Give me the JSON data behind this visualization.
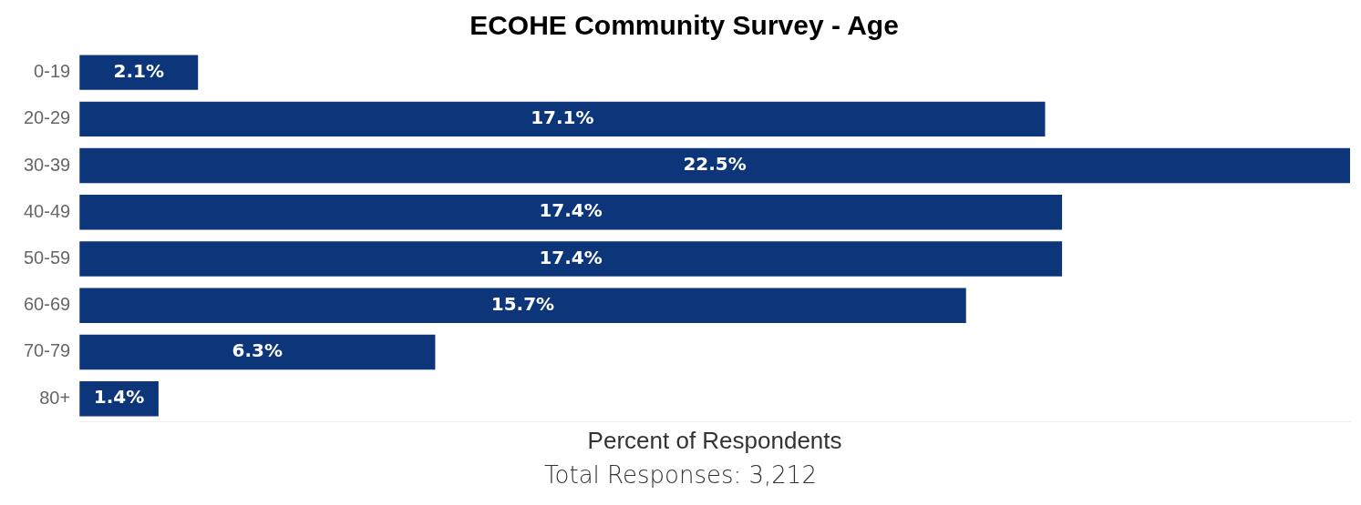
{
  "chart_data": {
    "type": "bar",
    "orientation": "horizontal",
    "title": "ECOHE Community Survey - Age",
    "xlabel": "Percent of Respondents",
    "annotations": [
      "Total Responses: 3,212"
    ],
    "categories": [
      "0-19",
      "20-29",
      "30-39",
      "40-49",
      "50-59",
      "60-69",
      "70-79",
      "80+"
    ],
    "values": [
      2.1,
      17.1,
      22.5,
      17.4,
      17.4,
      15.7,
      6.3,
      1.4
    ],
    "value_labels": [
      "2.1%",
      "17.1%",
      "22.5%",
      "17.4%",
      "17.4%",
      "15.7%",
      "6.3%",
      "1.4%"
    ],
    "color": "#0c357a",
    "xlim": [
      0,
      22.5
    ],
    "tick_labels": "y",
    "grid": false,
    "legend": false
  }
}
